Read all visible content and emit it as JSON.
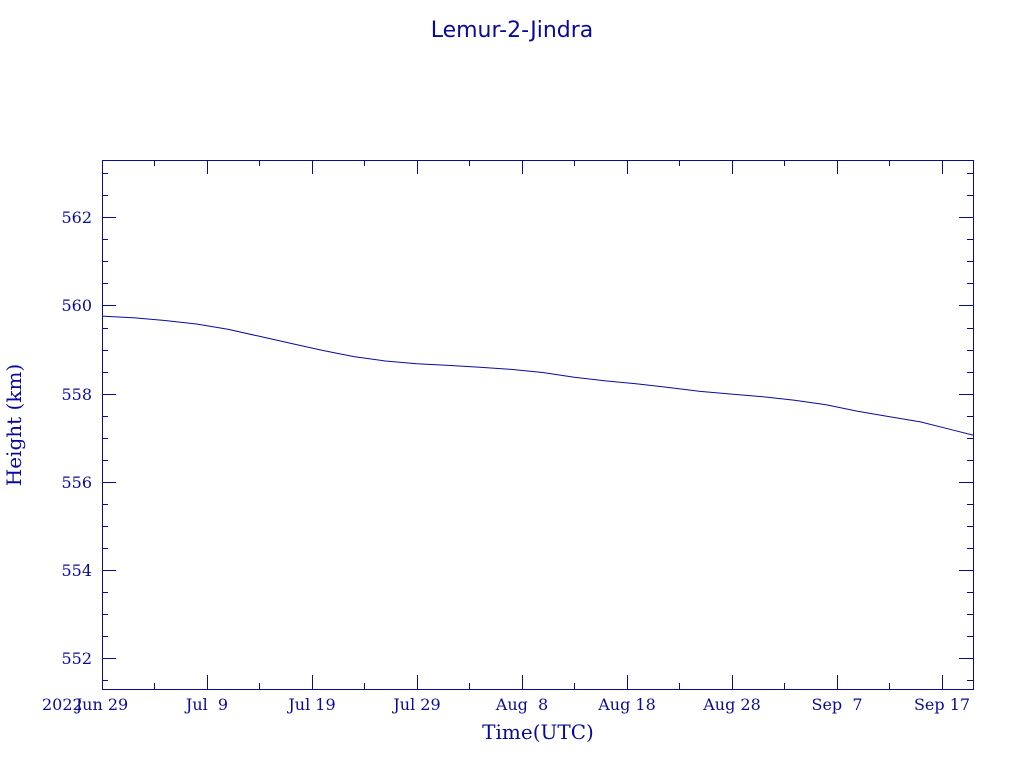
{
  "chart_data": {
    "type": "line",
    "title": "Lemur-2-Jindra",
    "xlabel": "Time(UTC)",
    "ylabel": "Height (km)",
    "x_start_label": "2022",
    "xlim": [
      "2022-06-29",
      "2022-09-20"
    ],
    "ylim": [
      551.3,
      563.3
    ],
    "y_ticks": [
      552,
      554,
      556,
      558,
      560,
      562
    ],
    "x_ticks": [
      {
        "date": "2022-06-29",
        "label": "Jun 29"
      },
      {
        "date": "2022-07-09",
        "label": "Jul  9"
      },
      {
        "date": "2022-07-19",
        "label": "Jul 19"
      },
      {
        "date": "2022-07-29",
        "label": "Jul 29"
      },
      {
        "date": "2022-08-08",
        "label": "Aug  8"
      },
      {
        "date": "2022-08-18",
        "label": "Aug 18"
      },
      {
        "date": "2022-08-28",
        "label": "Aug 28"
      },
      {
        "date": "2022-09-07",
        "label": "Sep  7"
      },
      {
        "date": "2022-09-17",
        "label": "Sep 17"
      }
    ],
    "grid": false,
    "series": [
      {
        "x": [
          "2022-06-29",
          "2022-07-02",
          "2022-07-05",
          "2022-07-08",
          "2022-07-11",
          "2022-07-14",
          "2022-07-17",
          "2022-07-20",
          "2022-07-23",
          "2022-07-26",
          "2022-07-29",
          "2022-08-01",
          "2022-08-04",
          "2022-08-07",
          "2022-08-10",
          "2022-08-13",
          "2022-08-16",
          "2022-08-19",
          "2022-08-22",
          "2022-08-25",
          "2022-08-28",
          "2022-08-31",
          "2022-09-03",
          "2022-09-06",
          "2022-09-09",
          "2022-09-12",
          "2022-09-15",
          "2022-09-18",
          "2022-09-20"
        ],
        "y": [
          559.76,
          559.72,
          559.66,
          559.58,
          559.46,
          559.3,
          559.14,
          558.98,
          558.84,
          558.74,
          558.68,
          558.64,
          558.6,
          558.55,
          558.48,
          558.37,
          558.29,
          558.22,
          558.14,
          558.05,
          557.99,
          557.93,
          557.85,
          557.75,
          557.6,
          557.48,
          557.36,
          557.18,
          557.06
        ]
      }
    ]
  }
}
